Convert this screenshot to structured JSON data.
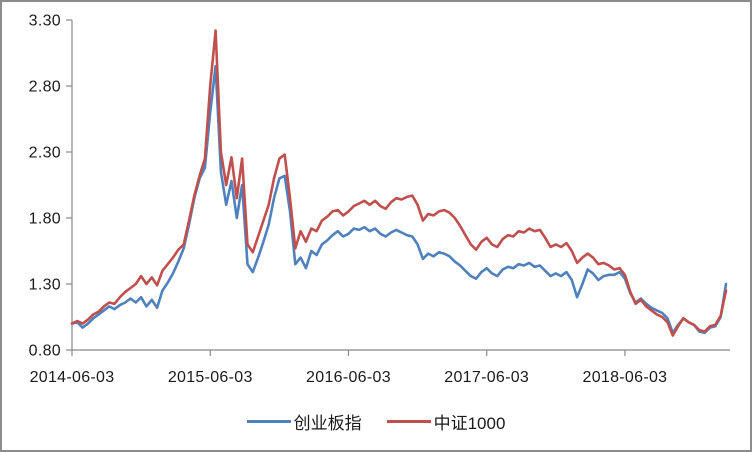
{
  "chart_data": {
    "type": "line",
    "title": "",
    "grid": false,
    "legend_position": "bottom-center",
    "x_axis": {
      "tick_labels": [
        "2014-06-03",
        "2015-06-03",
        "2016-06-03",
        "2017-06-03",
        "2018-06-03"
      ],
      "tick_positions_years": [
        0,
        1,
        2,
        3,
        4
      ],
      "range_years": [
        0,
        4.76
      ]
    },
    "y_axis": {
      "tick_labels": [
        "0.80",
        "1.30",
        "1.80",
        "2.30",
        "2.80",
        "3.30"
      ],
      "tick_values": [
        0.8,
        1.3,
        1.8,
        2.3,
        2.8,
        3.3
      ],
      "min": 0.8,
      "max": 3.3
    },
    "x_step_years": 0.038462,
    "series": [
      {
        "name": "创业板指",
        "color": "#4F81BD",
        "values": [
          1.0,
          1.01,
          0.97,
          1.0,
          1.04,
          1.07,
          1.1,
          1.13,
          1.11,
          1.14,
          1.16,
          1.19,
          1.16,
          1.2,
          1.13,
          1.18,
          1.12,
          1.25,
          1.31,
          1.38,
          1.47,
          1.57,
          1.75,
          1.95,
          2.1,
          2.18,
          2.6,
          2.95,
          2.15,
          1.9,
          2.08,
          1.8,
          2.05,
          1.45,
          1.39,
          1.5,
          1.62,
          1.75,
          1.95,
          2.1,
          2.12,
          1.85,
          1.45,
          1.5,
          1.42,
          1.55,
          1.52,
          1.6,
          1.63,
          1.67,
          1.7,
          1.66,
          1.68,
          1.72,
          1.71,
          1.73,
          1.7,
          1.72,
          1.68,
          1.66,
          1.69,
          1.71,
          1.69,
          1.67,
          1.66,
          1.6,
          1.49,
          1.53,
          1.51,
          1.54,
          1.53,
          1.51,
          1.47,
          1.44,
          1.4,
          1.36,
          1.34,
          1.39,
          1.42,
          1.38,
          1.36,
          1.41,
          1.43,
          1.42,
          1.45,
          1.44,
          1.46,
          1.43,
          1.44,
          1.4,
          1.36,
          1.38,
          1.36,
          1.39,
          1.33,
          1.2,
          1.3,
          1.41,
          1.38,
          1.33,
          1.36,
          1.37,
          1.37,
          1.39,
          1.34,
          1.23,
          1.16,
          1.19,
          1.15,
          1.12,
          1.1,
          1.08,
          1.04,
          0.93,
          0.99,
          1.04,
          1.01,
          0.99,
          0.94,
          0.93,
          0.97,
          0.98,
          1.05,
          1.3
        ]
      },
      {
        "name": "中证1000",
        "color": "#C0504D",
        "values": [
          1.0,
          1.02,
          1.0,
          1.03,
          1.07,
          1.09,
          1.13,
          1.16,
          1.15,
          1.2,
          1.24,
          1.27,
          1.3,
          1.36,
          1.3,
          1.35,
          1.29,
          1.4,
          1.45,
          1.5,
          1.56,
          1.6,
          1.78,
          1.97,
          2.12,
          2.25,
          2.8,
          3.22,
          2.3,
          2.05,
          2.26,
          1.95,
          2.25,
          1.6,
          1.54,
          1.66,
          1.78,
          1.9,
          2.1,
          2.25,
          2.28,
          1.95,
          1.57,
          1.7,
          1.62,
          1.72,
          1.7,
          1.78,
          1.81,
          1.85,
          1.86,
          1.82,
          1.85,
          1.89,
          1.91,
          1.93,
          1.9,
          1.93,
          1.89,
          1.87,
          1.92,
          1.95,
          1.94,
          1.96,
          1.97,
          1.9,
          1.78,
          1.83,
          1.82,
          1.85,
          1.86,
          1.84,
          1.8,
          1.74,
          1.67,
          1.6,
          1.56,
          1.62,
          1.65,
          1.6,
          1.58,
          1.64,
          1.67,
          1.66,
          1.7,
          1.69,
          1.72,
          1.7,
          1.71,
          1.65,
          1.58,
          1.6,
          1.58,
          1.61,
          1.55,
          1.46,
          1.5,
          1.53,
          1.5,
          1.45,
          1.46,
          1.44,
          1.41,
          1.42,
          1.37,
          1.24,
          1.15,
          1.18,
          1.13,
          1.1,
          1.07,
          1.05,
          1.01,
          0.91,
          0.98,
          1.04,
          1.01,
          0.99,
          0.95,
          0.94,
          0.98,
          0.99,
          1.06,
          1.25
        ]
      }
    ]
  },
  "colors": {
    "axis": "#898989",
    "text": "#1a1a1a",
    "frame_border": "#8c8c8c",
    "background": "#ffffff"
  }
}
